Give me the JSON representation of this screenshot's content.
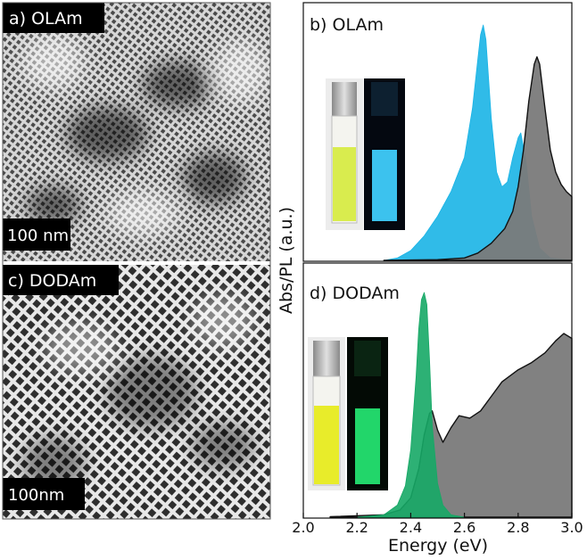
{
  "panels": {
    "a": {
      "label": "a) OLAm",
      "scale": "100 nm"
    },
    "c": {
      "label": "c) DODAm",
      "scale": "100nm"
    }
  },
  "colors": {
    "olam_pl": "#19b4e6",
    "olam_abs": "#7a7a7a",
    "dodam_pl": "#16a866",
    "dodam_abs": "#7a7a7a",
    "olam_vial_ambient": "#d9ec4e",
    "olam_vial_uv": "#3cc2ee",
    "dodam_vial_ambient": "#e8ec2a",
    "dodam_vial_uv": "#22d66a"
  },
  "chart_data": [
    {
      "type": "area",
      "panel": "b",
      "title": "b) OLAm",
      "xlabel": "Energy (eV)",
      "ylabel": "Abs/PL (a.u.)",
      "xlim": [
        2.0,
        3.0
      ],
      "ylim": [
        0,
        1.0
      ],
      "series": [
        {
          "name": "PL",
          "color_key": "olam_pl",
          "x": [
            2.3,
            2.35,
            2.4,
            2.45,
            2.5,
            2.55,
            2.6,
            2.63,
            2.65,
            2.66,
            2.67,
            2.68,
            2.7,
            2.72,
            2.74,
            2.76,
            2.78,
            2.8,
            2.81,
            2.83,
            2.85,
            2.88,
            2.92,
            3.0
          ],
          "y": [
            0,
            0.01,
            0.04,
            0.1,
            0.18,
            0.28,
            0.42,
            0.62,
            0.82,
            0.92,
            0.96,
            0.9,
            0.58,
            0.36,
            0.3,
            0.32,
            0.42,
            0.5,
            0.52,
            0.4,
            0.18,
            0.05,
            0.01,
            0
          ]
        },
        {
          "name": "Abs",
          "color_key": "olam_abs",
          "x": [
            2.3,
            2.5,
            2.6,
            2.65,
            2.7,
            2.75,
            2.78,
            2.8,
            2.82,
            2.84,
            2.86,
            2.87,
            2.88,
            2.9,
            2.92,
            2.94,
            2.96,
            2.98,
            3.0
          ],
          "y": [
            0,
            0.003,
            0.01,
            0.03,
            0.07,
            0.13,
            0.2,
            0.3,
            0.45,
            0.65,
            0.8,
            0.83,
            0.8,
            0.62,
            0.45,
            0.36,
            0.31,
            0.28,
            0.26
          ]
        }
      ]
    },
    {
      "type": "area",
      "panel": "d",
      "title": "d) DODAm",
      "xlabel": "Energy (eV)",
      "ylabel": "Abs/PL (a.u.)",
      "xlim": [
        2.0,
        3.0
      ],
      "ylim": [
        0,
        1.0
      ],
      "series": [
        {
          "name": "Abs",
          "color_key": "dodam_abs",
          "x": [
            2.1,
            2.3,
            2.36,
            2.4,
            2.43,
            2.45,
            2.47,
            2.48,
            2.5,
            2.52,
            2.55,
            2.58,
            2.62,
            2.66,
            2.7,
            2.74,
            2.8,
            2.85,
            2.9,
            2.94,
            2.97,
            3.0
          ],
          "y": [
            0.002,
            0.01,
            0.03,
            0.08,
            0.2,
            0.34,
            0.43,
            0.44,
            0.36,
            0.31,
            0.37,
            0.42,
            0.41,
            0.44,
            0.5,
            0.56,
            0.61,
            0.64,
            0.68,
            0.73,
            0.76,
            0.74
          ]
        },
        {
          "name": "PL",
          "color_key": "dodam_pl",
          "x": [
            2.2,
            2.3,
            2.35,
            2.38,
            2.4,
            2.42,
            2.43,
            2.44,
            2.45,
            2.46,
            2.47,
            2.48,
            2.5,
            2.52,
            2.55,
            2.6
          ],
          "y": [
            0,
            0.01,
            0.05,
            0.13,
            0.28,
            0.58,
            0.78,
            0.9,
            0.93,
            0.88,
            0.65,
            0.38,
            0.14,
            0.05,
            0.01,
            0
          ]
        }
      ]
    }
  ],
  "x_ticks": [
    "2.0",
    "2.2",
    "2.4",
    "2.6",
    "2.8",
    "3.0"
  ],
  "x_tick_values": [
    2.0,
    2.2,
    2.4,
    2.6,
    2.8,
    3.0
  ],
  "xlabel": "Energy (eV)",
  "ylabel": "Abs/PL (a.u.)"
}
